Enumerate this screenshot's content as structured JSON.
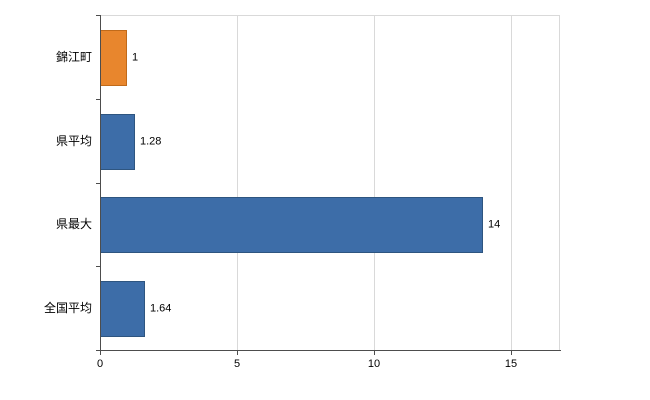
{
  "chart_data": {
    "type": "bar",
    "orientation": "horizontal",
    "title": "",
    "categories": [
      "錦江町",
      "県平均",
      "県最大",
      "全国平均"
    ],
    "values": [
      1,
      1.28,
      14,
      1.64
    ],
    "value_labels": [
      "1",
      "1.28",
      "14",
      "1.64"
    ],
    "bar_colors": [
      "#e8862d",
      "#3d6da8",
      "#3d6da8",
      "#3d6da8"
    ],
    "bar_border_colors": [
      "#c06a1a",
      "#2e5580",
      "#2e5580",
      "#2e5580"
    ],
    "xlabel": "",
    "ylabel": "",
    "xlim": [
      0,
      16.8
    ],
    "xticks": [
      0,
      5,
      10,
      15
    ],
    "xtick_labels": [
      "0",
      "5",
      "10",
      "15"
    ],
    "grid": true,
    "legend": "none",
    "colors": {
      "gridline": "#d9d9d9",
      "axis": "#4d4d4d",
      "text": "#000000",
      "background": "#ffffff"
    }
  }
}
